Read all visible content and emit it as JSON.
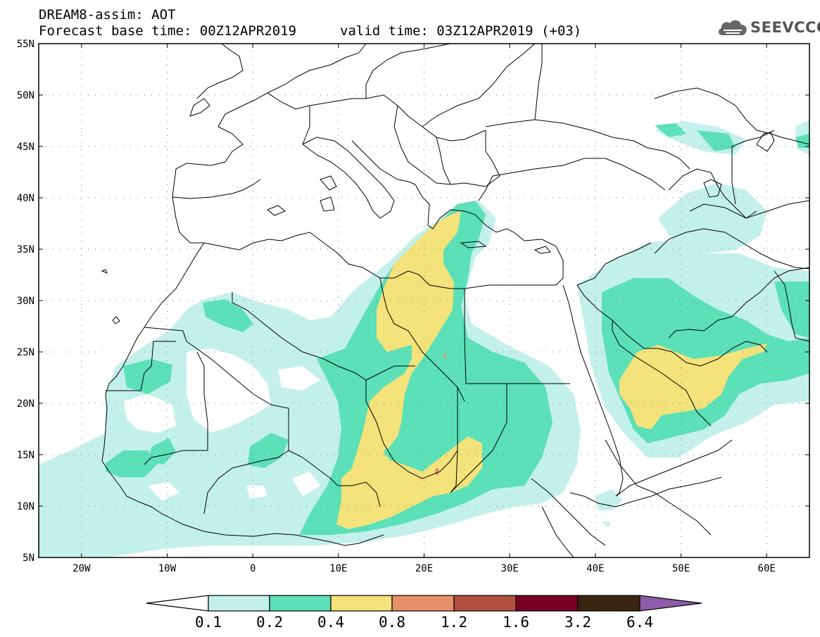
{
  "header": {
    "line1": "DREAM8-assim: AOT",
    "line2": "Forecast base time: 00Z12APR2019",
    "line3": "valid time: 03Z12APR2019 (+03)",
    "logo_text": "SEEVCCC"
  },
  "map": {
    "lon_range": [
      -25,
      65
    ],
    "lat_range": [
      5,
      55
    ],
    "lat_labels": [
      "55N",
      "50N",
      "45N",
      "40N",
      "35N",
      "30N",
      "25N",
      "20N",
      "15N",
      "10N",
      "5N"
    ],
    "lon_labels": [
      "20W",
      "10W",
      "0",
      "10E",
      "20E",
      "30E",
      "40E",
      "50E",
      "60E"
    ],
    "coast_color": "#000000",
    "grid_style": "dotted"
  },
  "legend": {
    "labels": [
      "0.1",
      "0.2",
      "0.4",
      "0.8",
      "1.2",
      "1.6",
      "3.2",
      "6.4"
    ],
    "colors": {
      "c1": "#c4f0eb",
      "c2": "#5ce0b8",
      "c3": "#f4e27a",
      "c4": "#e8906a",
      "c5": "#b05040",
      "c6": "#7a0025",
      "c7": "#3a2510",
      "c8": "#8e5ca8",
      "under": "#ffffff"
    }
  }
}
